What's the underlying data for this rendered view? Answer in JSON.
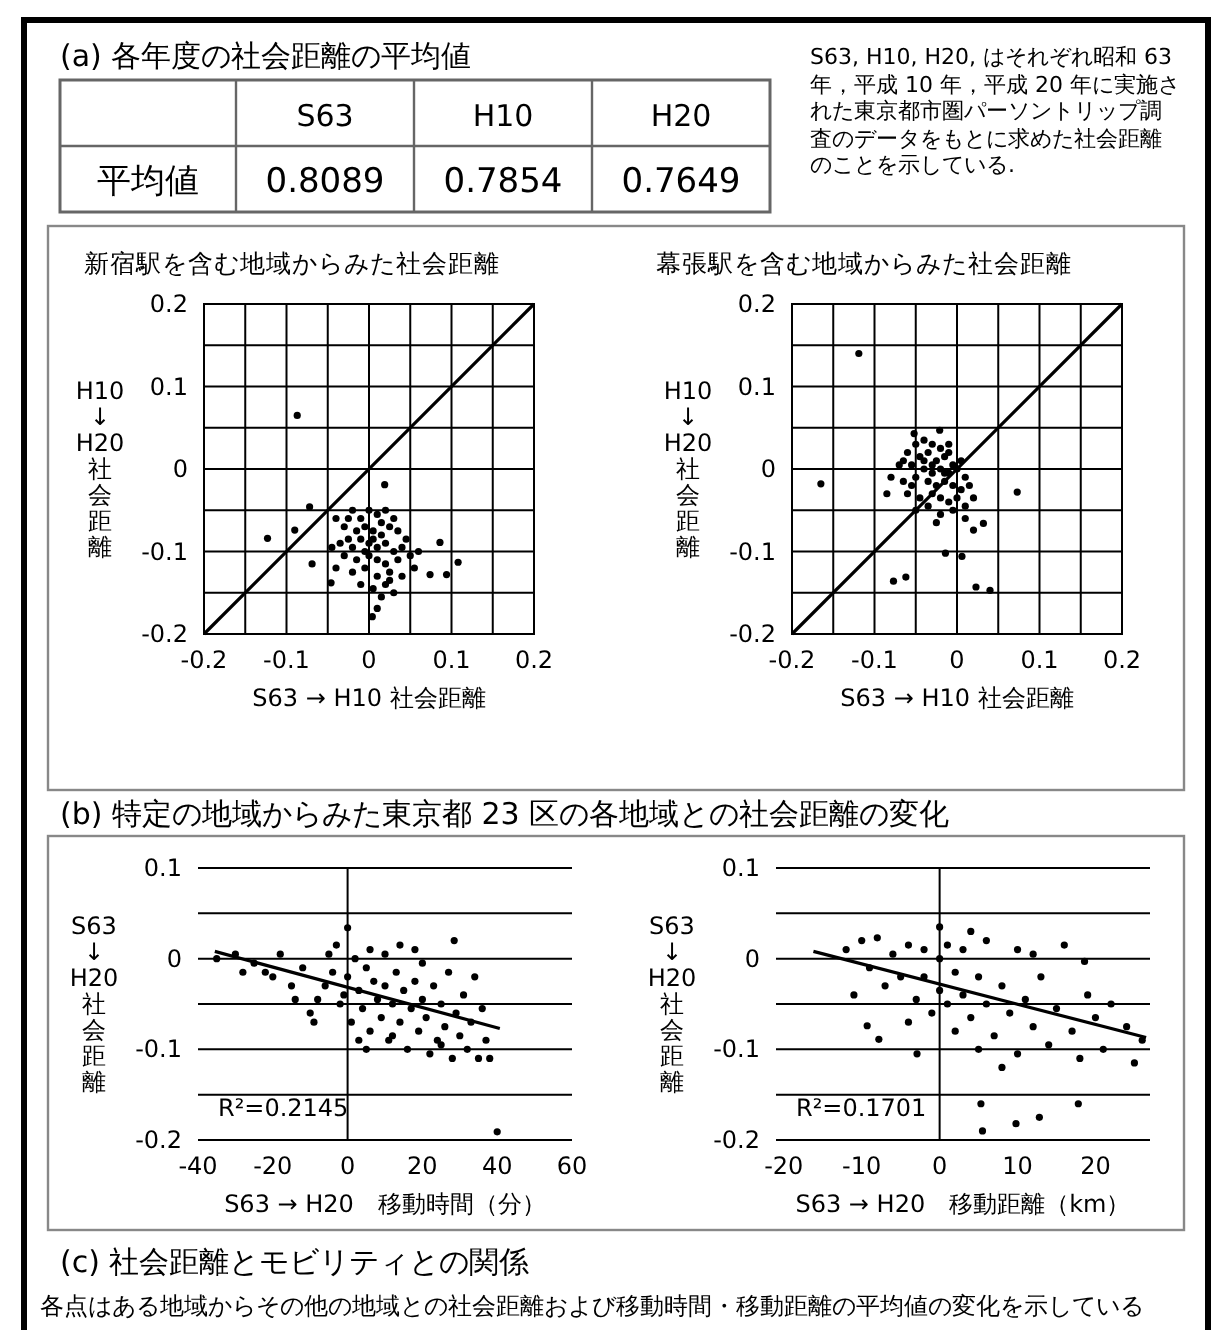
{
  "chart_data": [
    {
      "type": "other",
      "title": "(a) 各年度の社会距離の平均値",
      "categories": [
        "S63",
        "H10",
        "H20"
      ],
      "values": [
        0.8089,
        0.7854,
        0.7649
      ],
      "ylabel": "平均値",
      "data_labels": true,
      "annotations": [
        "S63, H10, H20, はそれぞれ昭和 63 年，平成 10 年，平成 20 年に実施された東京都市圏パーソントリップ調査のデータをもとに求めた社会距離のことを示している."
      ]
    },
    {
      "type": "scatter",
      "title": "新宿駅を含む地域からみた社会距離",
      "xlabel": "S63 → H10 社会距離",
      "ylabel": "H10 ↓ H20 社会距離",
      "xlim": [
        -0.2,
        0.2
      ],
      "ylim": [
        -0.2,
        0.2
      ],
      "grid": true,
      "marker": "circle",
      "xticks": [
        -0.2,
        {
          "value": -0.15,
          "label": null
        },
        -0.1,
        {
          "value": -0.05,
          "label": null
        },
        0,
        {
          "value": 0.05,
          "label": null
        },
        0.1,
        {
          "value": 0.15,
          "label": null
        },
        0.2
      ],
      "yticks": [
        -0.2,
        {
          "value": -0.15,
          "label": null
        },
        -0.1,
        {
          "value": -0.05,
          "label": null
        },
        0,
        {
          "value": 0.05,
          "label": null
        },
        0.1,
        {
          "value": 0.15,
          "label": null
        },
        0.2
      ],
      "series": [
        {
          "type": "scatter",
          "color": "#000000",
          "x": [
            -0.087,
            -0.123,
            -0.09,
            -0.069,
            -0.072,
            -0.046,
            0.019,
            0.086,
            0.108,
            0.094,
            0.074,
            0.004,
            0.01,
            -0.04,
            -0.03,
            -0.02,
            -0.01,
            0,
            0.01,
            0.02,
            0.015,
            -0.025,
            -0.015,
            -0.005,
            0.005,
            0.015,
            0.025,
            0.035,
            -0.035,
            -0.02,
            -0.01,
            0,
            0.01,
            0.02,
            0.03,
            0.04,
            -0.03,
            -0.015,
            0,
            0.01,
            0.02,
            0.035,
            0.05,
            0.06,
            -0.04,
            -0.02,
            -0.005,
            0.01,
            0.025,
            0.04,
            -0.01,
            0.005,
            0.02,
            0.03,
            0.015,
            -0.045,
            0.045,
            0.055,
            -0.005,
            0.005,
            -0.025,
            0.03,
            0.025
          ],
          "values": [
            0.065,
            -0.084,
            -0.074,
            -0.115,
            -0.046,
            -0.138,
            -0.019,
            -0.089,
            -0.113,
            -0.128,
            -0.128,
            -0.179,
            -0.169,
            -0.06,
            -0.07,
            -0.05,
            -0.06,
            -0.05,
            -0.055,
            -0.05,
            -0.065,
            -0.085,
            -0.075,
            -0.07,
            -0.075,
            -0.08,
            -0.07,
            -0.075,
            -0.09,
            -0.095,
            -0.085,
            -0.09,
            -0.095,
            -0.09,
            -0.1,
            -0.095,
            -0.105,
            -0.11,
            -0.105,
            -0.11,
            -0.115,
            -0.11,
            -0.105,
            -0.1,
            -0.12,
            -0.125,
            -0.12,
            -0.13,
            -0.125,
            -0.13,
            -0.14,
            -0.145,
            -0.14,
            -0.15,
            -0.155,
            -0.095,
            -0.085,
            -0.12,
            -0.1,
            -0.085,
            -0.06,
            -0.06,
            -0.135
          ]
        },
        {
          "type": "line",
          "marker": "none",
          "color": "#000000",
          "x": [
            -0.2,
            0.2
          ],
          "values": [
            -0.2,
            0.2
          ]
        }
      ]
    },
    {
      "type": "scatter",
      "title": "幕張駅を含む地域からみた社会距離",
      "xlabel": "S63 → H10 社会距離",
      "ylabel": "H10 ↓ H20 社会距離",
      "xlim": [
        -0.2,
        0.2
      ],
      "ylim": [
        -0.2,
        0.2
      ],
      "grid": true,
      "marker": "circle",
      "xticks": [
        -0.2,
        {
          "value": -0.15,
          "label": null
        },
        -0.1,
        {
          "value": -0.05,
          "label": null
        },
        0,
        {
          "value": 0.05,
          "label": null
        },
        0.1,
        {
          "value": 0.15,
          "label": null
        },
        0.2
      ],
      "yticks": [
        -0.2,
        {
          "value": -0.15,
          "label": null
        },
        -0.1,
        {
          "value": -0.05,
          "label": null
        },
        0,
        {
          "value": 0.05,
          "label": null
        },
        0.1,
        {
          "value": 0.15,
          "label": null
        },
        0.2
      ],
      "series": [
        {
          "type": "scatter",
          "color": "#000000",
          "x": [
            -0.119,
            -0.165,
            0.073,
            -0.077,
            -0.062,
            -0.014,
            0.006,
            0.023,
            0.04,
            0.032,
            0.02,
            -0.021,
            -0.052,
            -0.05,
            -0.04,
            -0.03,
            -0.02,
            -0.01,
            -0.06,
            -0.045,
            -0.035,
            -0.025,
            -0.015,
            -0.005,
            -0.07,
            -0.055,
            -0.04,
            -0.03,
            -0.02,
            -0.01,
            0,
            0.01,
            -0.08,
            -0.065,
            -0.05,
            -0.035,
            -0.025,
            -0.015,
            -0.005,
            0.005,
            0.015,
            -0.085,
            -0.06,
            -0.045,
            -0.03,
            -0.02,
            -0.01,
            0,
            0.01,
            -0.05,
            -0.035,
            -0.02,
            -0.005,
            0.01,
            -0.025,
            -0.04,
            -0.015,
            -0.03,
            -0.055,
            0.005,
            -0.01,
            0.02,
            -0.065
          ],
          "values": [
            0.14,
            -0.018,
            -0.028,
            -0.136,
            -0.131,
            -0.102,
            -0.106,
            -0.143,
            -0.147,
            -0.066,
            -0.074,
            0.047,
            0.043,
            0.03,
            0.035,
            0.03,
            0.025,
            0.02,
            0.02,
            0.015,
            0.02,
            0.01,
            0.015,
            0.005,
            0.005,
            0.005,
            0,
            -0.005,
            0,
            -0.005,
            0,
            -0.01,
            -0.01,
            -0.015,
            -0.01,
            -0.015,
            -0.02,
            -0.015,
            -0.02,
            -0.025,
            -0.02,
            -0.03,
            -0.03,
            -0.035,
            -0.03,
            -0.035,
            -0.04,
            -0.035,
            -0.045,
            -0.05,
            -0.045,
            -0.055,
            -0.05,
            -0.06,
            -0.065,
            0.01,
            -0.005,
            0.005,
            -0.02,
            0.01,
            0.03,
            -0.035,
            0.01
          ]
        },
        {
          "type": "line",
          "marker": "none",
          "color": "#000000",
          "x": [
            -0.2,
            0.2
          ],
          "values": [
            -0.2,
            0.2
          ]
        }
      ]
    },
    {
      "type": "scatter",
      "title": "(b) 特定の地域からみた東京都 23 区の各地域との社会距離の変化",
      "xlabel": "S63 → H20　移動時間（分）",
      "ylabel": "S63 ↓ H20 社会距離",
      "xlim": [
        -40,
        60
      ],
      "ylim": [
        -0.2,
        0.1
      ],
      "grid": "y",
      "marker": "circle",
      "xticks": [
        -40,
        -20,
        0,
        20,
        40,
        60
      ],
      "yticks": [
        -0.2,
        {
          "value": -0.15,
          "label": null
        },
        -0.1,
        {
          "value": -0.05,
          "label": null
        },
        0,
        {
          "value": 0.05,
          "label": null
        },
        0.1
      ],
      "ref_lines": [
        {
          "axis": "x",
          "value": 0
        }
      ],
      "annotations": [
        "R²=0.2145"
      ],
      "series": [
        {
          "type": "scatter",
          "color": "#000000",
          "x": [
            -35,
            -30,
            -25,
            -22,
            -20,
            -18,
            -15,
            -12,
            -10,
            -8,
            -6,
            -5,
            -4,
            -2,
            0,
            0,
            1,
            2,
            3,
            4,
            5,
            6,
            7,
            8,
            9,
            10,
            10,
            11,
            12,
            13,
            14,
            15,
            16,
            17,
            18,
            18,
            19,
            20,
            21,
            22,
            23,
            24,
            25,
            26,
            27,
            28,
            28.5,
            29,
            30,
            31,
            32,
            33,
            34,
            35,
            36,
            37,
            38,
            40,
            -9,
            -14,
            3,
            -3,
            6,
            12,
            -28,
            25,
            14,
            -1,
            20,
            5
          ],
          "values": [
            0,
            0.005,
            -0.005,
            -0.015,
            -0.02,
            0.005,
            -0.03,
            -0.01,
            -0.06,
            -0.045,
            -0.03,
            0.005,
            -0.015,
            -0.05,
            -0.02,
            0.034,
            -0.07,
            0,
            -0.035,
            -0.055,
            -0.01,
            -0.08,
            -0.025,
            -0.045,
            -0.065,
            0.005,
            -0.03,
            -0.09,
            -0.05,
            -0.015,
            -0.07,
            -0.035,
            -0.1,
            -0.055,
            0.01,
            -0.025,
            -0.08,
            -0.045,
            -0.065,
            -0.105,
            -0.03,
            -0.09,
            -0.05,
            -0.075,
            -0.015,
            -0.11,
            0.02,
            -0.06,
            -0.085,
            -0.04,
            -0.1,
            -0.07,
            -0.02,
            -0.11,
            -0.055,
            -0.09,
            -0.11,
            -0.191,
            -0.07,
            -0.045,
            -0.09,
            0.015,
            0.01,
            -0.085,
            -0.015,
            -0.095,
            0.015,
            -0.04,
            -0.005,
            -0.1
          ]
        },
        {
          "type": "line",
          "marker": "none",
          "color": "#000000",
          "x": [
            -35.5,
            40.7
          ],
          "values": [
            0.008,
            -0.077
          ]
        }
      ]
    },
    {
      "type": "scatter",
      "xlabel": "S63 → H20　移動距離（km）",
      "ylabel": "S63 ↓ H20 社会距離",
      "xlim": [
        -21,
        27
      ],
      "ylim": [
        -0.2,
        0.1
      ],
      "grid": "y",
      "marker": "circle",
      "xticks": [
        -20,
        -10,
        0,
        10,
        20
      ],
      "yticks": [
        -0.2,
        {
          "value": -0.15,
          "label": null
        },
        -0.1,
        {
          "value": -0.05,
          "label": null
        },
        0,
        {
          "value": 0.05,
          "label": null
        },
        0.1
      ],
      "ref_lines": [
        {
          "axis": "x",
          "value": 0
        }
      ],
      "annotations": [
        "R²=0.1701",
        "(c) 社会距離とモビリティとの関係",
        "各点はある地域からその他の地域との社会距離および移動時間・移動距離の平均値の変化を示している"
      ],
      "series": [
        {
          "type": "scatter",
          "color": "#000000",
          "x": [
            -12,
            -10,
            -9,
            -8,
            -7,
            -6,
            -5,
            -4,
            -3,
            -2,
            -2,
            -1,
            0,
            0,
            0,
            1,
            1,
            2,
            2,
            3,
            3,
            4,
            5,
            5,
            6,
            6,
            7,
            8,
            9,
            10,
            10,
            11,
            12,
            13,
            14,
            15,
            16,
            17,
            18,
            19,
            20,
            21,
            22,
            24,
            25,
            26,
            -9.3,
            -7.8,
            -2.9,
            18.6,
            5.3,
            5.5,
            9.8,
            12.8,
            17.8,
            -11,
            4,
            8,
            -4,
            12
          ],
          "values": [
            0.01,
            0.02,
            -0.01,
            0.023,
            -0.03,
            0.005,
            -0.02,
            0.015,
            -0.045,
            0.01,
            -0.02,
            -0.06,
            0.035,
            0,
            -0.035,
            0.015,
            -0.05,
            -0.015,
            -0.08,
            0.01,
            -0.04,
            -0.065,
            -0.02,
            -0.1,
            0.02,
            -0.05,
            -0.085,
            -0.03,
            -0.06,
            0.01,
            -0.105,
            -0.045,
            -0.075,
            -0.02,
            -0.095,
            -0.055,
            0.015,
            -0.08,
            -0.11,
            -0.04,
            -0.065,
            -0.1,
            -0.05,
            -0.075,
            -0.115,
            -0.09,
            -0.074,
            -0.089,
            -0.105,
            -0.003,
            -0.16,
            -0.19,
            -0.182,
            -0.175,
            -0.16,
            -0.04,
            0.03,
            -0.12,
            -0.07,
            0.005
          ]
        },
        {
          "type": "line",
          "marker": "none",
          "color": "#000000",
          "x": [
            -16.2,
            26.5
          ],
          "values": [
            0.008,
            -0.087
          ]
        }
      ]
    }
  ]
}
